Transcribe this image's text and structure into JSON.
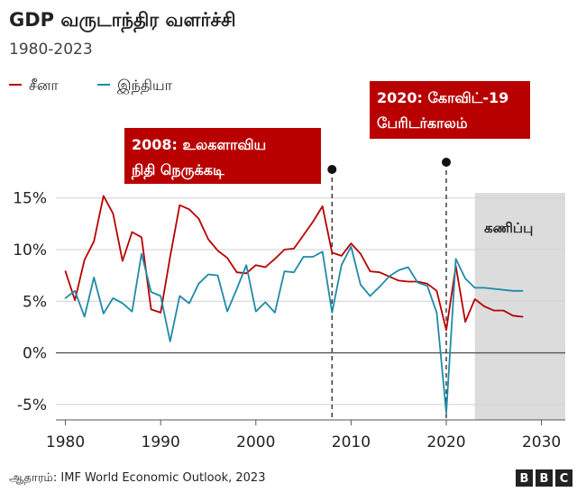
{
  "title": "GDP வருடாந்திர வளர்ச்சி",
  "subtitle": "1980-2023",
  "legend": [
    {
      "label": "சீனா",
      "color": "#b80000"
    },
    {
      "label": "இந்தியா",
      "color": "#1e8ba6"
    }
  ],
  "annotations": [
    {
      "lines": [
        "2008: உலகளாவிய",
        "நிதி நெருக்கடி"
      ],
      "year": 2008
    },
    {
      "lines": [
        "2020: கோவிட்-19",
        "பேரிடர்காலம்"
      ],
      "year": 2020
    }
  ],
  "forecast_label": "கணிப்பு",
  "source": "ஆதாரம்: IMF World Economic Outlook, 2023",
  "logo": [
    "B",
    "B",
    "C"
  ],
  "chart_data": {
    "type": "line",
    "xlim": [
      1979,
      2032.5
    ],
    "ylim": [
      -6.5,
      15.5
    ],
    "x_ticks": [
      1980,
      1990,
      2000,
      2010,
      2020,
      2030
    ],
    "y_ticks": [
      15,
      10,
      5,
      0,
      -5
    ],
    "y_tick_labels": [
      "15%",
      "10%",
      "5%",
      "0%",
      "-5%"
    ],
    "grid": true,
    "forecast_range": [
      2023,
      2032.5
    ],
    "series": [
      {
        "name": "சீனா",
        "color": "#b80000",
        "x": [
          1980,
          1981,
          1982,
          1983,
          1984,
          1985,
          1986,
          1987,
          1988,
          1989,
          1990,
          1991,
          1992,
          1993,
          1994,
          1995,
          1996,
          1997,
          1998,
          1999,
          2000,
          2001,
          2002,
          2003,
          2004,
          2005,
          2006,
          2007,
          2008,
          2009,
          2010,
          2011,
          2012,
          2013,
          2014,
          2015,
          2016,
          2017,
          2018,
          2019,
          2020,
          2021,
          2022,
          2023,
          2024,
          2025,
          2026,
          2027,
          2028
        ],
        "values": [
          7.9,
          5.1,
          9.0,
          10.8,
          15.2,
          13.5,
          8.9,
          11.7,
          11.2,
          4.2,
          3.9,
          9.3,
          14.3,
          13.9,
          13.0,
          11.0,
          9.9,
          9.2,
          7.8,
          7.7,
          8.5,
          8.3,
          9.1,
          10.0,
          10.1,
          11.4,
          12.7,
          14.2,
          9.7,
          9.4,
          10.6,
          9.6,
          7.9,
          7.8,
          7.4,
          7.0,
          6.9,
          6.9,
          6.7,
          6.0,
          2.2,
          8.4,
          3.0,
          5.2,
          4.5,
          4.1,
          4.1,
          3.6,
          3.5
        ]
      },
      {
        "name": "இந்தியா",
        "color": "#1e8ba6",
        "x": [
          1980,
          1981,
          1982,
          1983,
          1984,
          1985,
          1986,
          1987,
          1988,
          1989,
          1990,
          1991,
          1992,
          1993,
          1994,
          1995,
          1996,
          1997,
          1998,
          1999,
          2000,
          2001,
          2002,
          2003,
          2004,
          2005,
          2006,
          2007,
          2008,
          2009,
          2010,
          2011,
          2012,
          2013,
          2014,
          2015,
          2016,
          2017,
          2018,
          2019,
          2020,
          2021,
          2022,
          2023,
          2024,
          2025,
          2026,
          2027,
          2028
        ],
        "values": [
          5.3,
          6.0,
          3.5,
          7.3,
          3.8,
          5.3,
          4.8,
          4.0,
          9.6,
          5.9,
          5.5,
          1.1,
          5.5,
          4.8,
          6.7,
          7.6,
          7.5,
          4.0,
          6.2,
          8.5,
          4.0,
          4.9,
          3.9,
          7.9,
          7.8,
          9.3,
          9.3,
          9.8,
          3.9,
          8.5,
          10.3,
          6.6,
          5.5,
          6.4,
          7.4,
          8.0,
          8.3,
          6.8,
          6.5,
          3.9,
          -5.8,
          9.1,
          7.2,
          6.3,
          6.3,
          6.2,
          6.1,
          6.0,
          6.0
        ]
      }
    ]
  }
}
